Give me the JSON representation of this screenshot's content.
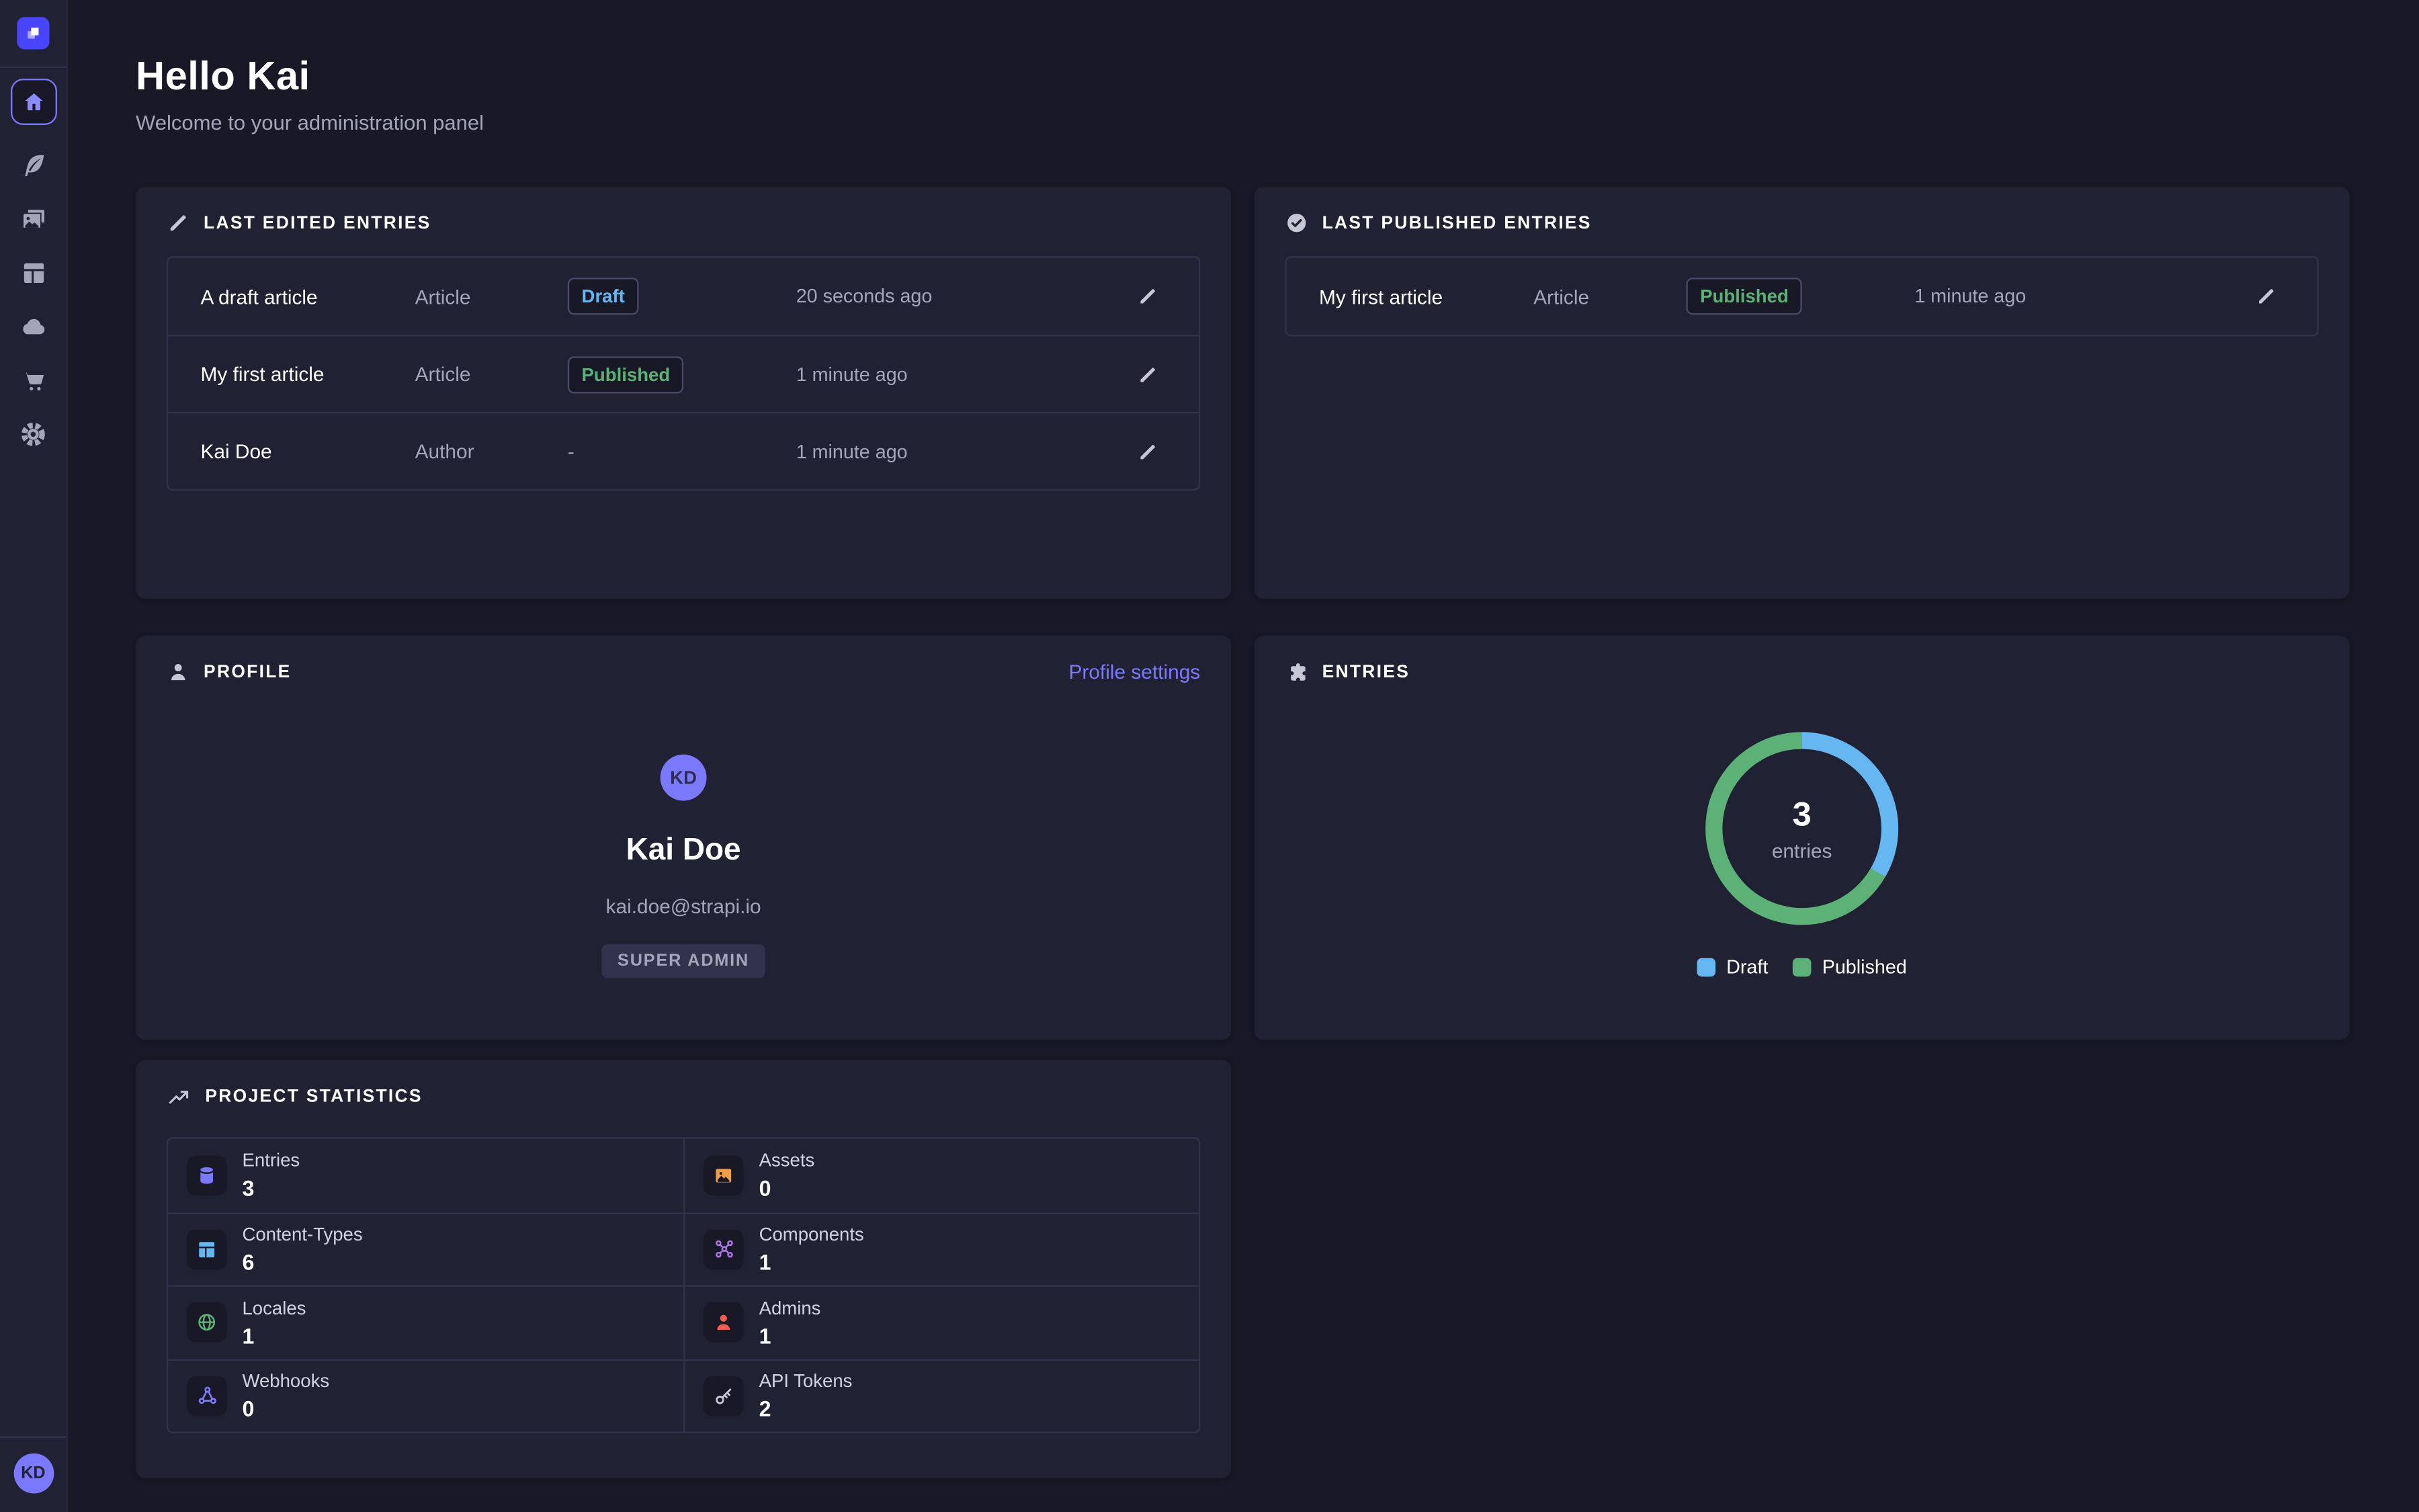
{
  "colors": {
    "bg-app": "#181826",
    "bg-card": "#212134",
    "bg-inset": "#181826",
    "border": "#32324d",
    "badge-border": "#4a4a6a",
    "text": "#ffffff",
    "text-muted": "#a5a5ba",
    "text-soft": "#d2d2e0",
    "accent": "#7b79ff",
    "logo": "#4945ff",
    "icon-gray": "#c6c6d4",
    "draft": "#66b7f1",
    "published": "#5cb176"
  },
  "sidebar": {
    "logo_icon": "strapi-logo-icon",
    "nav_icons": [
      "home-icon",
      "feather-icon",
      "pictures-icon",
      "layout-icon",
      "cloud-icon",
      "cart-icon",
      "gear-icon"
    ],
    "active_item": "home",
    "user_initials": "KD"
  },
  "header": {
    "title": "Hello Kai",
    "subtitle": "Welcome to your administration panel"
  },
  "last_edited": {
    "title": "LAST EDITED ENTRIES",
    "icon": "pencil-icon",
    "rows": [
      {
        "name": "A draft article",
        "type": "Article",
        "status": "Draft",
        "status_kind": "draft",
        "time": "20 seconds ago"
      },
      {
        "name": "My first article",
        "type": "Article",
        "status": "Published",
        "status_kind": "published",
        "time": "1 minute ago"
      },
      {
        "name": "Kai Doe",
        "type": "Author",
        "status": "-",
        "status_kind": "none",
        "time": "1 minute ago"
      }
    ]
  },
  "last_published": {
    "title": "LAST PUBLISHED ENTRIES",
    "icon": "check-circle-icon",
    "rows": [
      {
        "name": "My first article",
        "type": "Article",
        "status": "Published",
        "status_kind": "published",
        "time": "1 minute ago"
      }
    ]
  },
  "profile": {
    "title": "PROFILE",
    "icon": "user-icon",
    "settings_link": "Profile settings",
    "avatar_initials": "KD",
    "name": "Kai Doe",
    "email": "kai.doe@strapi.io",
    "role_badge": "SUPER ADMIN"
  },
  "entries_card": {
    "title": "ENTRIES",
    "icon": "puzzle-icon"
  },
  "chart_data": {
    "type": "pie",
    "variant": "donut",
    "title": "ENTRIES",
    "center_value": "3",
    "center_label": "entries",
    "slices": [
      {
        "label": "Draft",
        "value": 1,
        "color": "#66b7f1"
      },
      {
        "label": "Published",
        "value": 2,
        "color": "#5cb176"
      }
    ],
    "legend_position": "bottom"
  },
  "project_statistics": {
    "title": "PROJECT STATISTICS",
    "icon": "trend-up-icon",
    "stats": [
      {
        "label": "Entries",
        "value": "3",
        "icon": "database-icon",
        "color": "#7b79ff"
      },
      {
        "label": "Assets",
        "value": "0",
        "icon": "image-icon",
        "color": "#f29d41"
      },
      {
        "label": "Content-Types",
        "value": "6",
        "icon": "layout-icon",
        "color": "#66b7f1"
      },
      {
        "label": "Components",
        "value": "1",
        "icon": "nodes-icon",
        "color": "#ac73e6"
      },
      {
        "label": "Locales",
        "value": "1",
        "icon": "globe-icon",
        "color": "#5cb176"
      },
      {
        "label": "Admins",
        "value": "1",
        "icon": "user-icon",
        "color": "#ee5e52"
      },
      {
        "label": "Webhooks",
        "value": "0",
        "icon": "webhook-icon",
        "color": "#7b79ff"
      },
      {
        "label": "API Tokens",
        "value": "2",
        "icon": "key-icon",
        "color": "#c6c6d4"
      }
    ]
  }
}
